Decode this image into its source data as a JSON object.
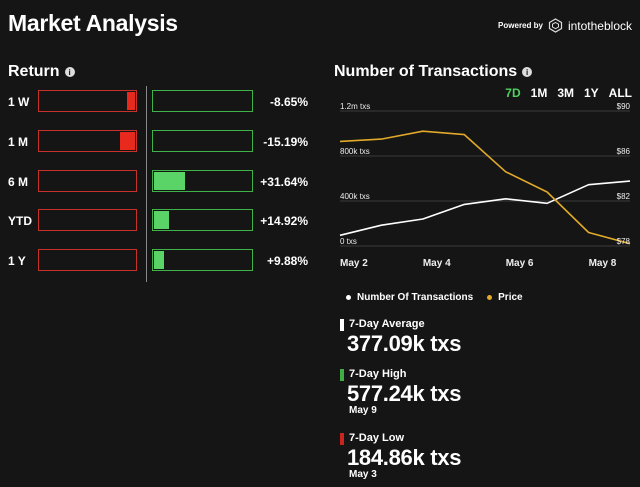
{
  "header": {
    "title": "Market Analysis",
    "powered_by": "Powered by",
    "brand": "intotheblock"
  },
  "return_section": {
    "title": "Return",
    "rows": [
      {
        "label": "1 W",
        "value": "-8.65%",
        "neg_pct": 8.65,
        "pos_pct": 0
      },
      {
        "label": "1 M",
        "value": "-15.19%",
        "neg_pct": 15.19,
        "pos_pct": 0
      },
      {
        "label": "6 M",
        "value": "+31.64%",
        "neg_pct": 0,
        "pos_pct": 31.64
      },
      {
        "label": "YTD",
        "value": "+14.92%",
        "neg_pct": 0,
        "pos_pct": 14.92
      },
      {
        "label": "1 Y",
        "value": "+9.88%",
        "neg_pct": 0,
        "pos_pct": 9.88
      }
    ],
    "colors": {
      "negative": "#e8291e",
      "positive": "#5bd467"
    }
  },
  "transactions": {
    "title": "Number of Transactions",
    "timeframes": [
      "7D",
      "1M",
      "3M",
      "1Y",
      "ALL"
    ],
    "active_timeframe": "7D",
    "legend": {
      "transactions": "Number Of Transactions",
      "price": "Price"
    }
  },
  "chart_data": {
    "type": "line",
    "x": [
      "May 2",
      "May 3",
      "May 4",
      "May 5",
      "May 6",
      "May 7",
      "May 8",
      "May 9"
    ],
    "x_tick_labels": [
      "May 2",
      "May 4",
      "May 6",
      "May 8"
    ],
    "y_left_ticks": [
      "1.2m txs",
      "800k txs",
      "400k txs",
      "0 txs"
    ],
    "y_right_ticks": [
      "$90",
      "$86",
      "$82",
      "$78"
    ],
    "y_left_range": [
      0,
      1200000
    ],
    "y_right_range": [
      78,
      90
    ],
    "series": [
      {
        "name": "Number Of Transactions",
        "axis": "left",
        "color": "#ffffff",
        "values": [
          95000,
          184860,
          240000,
          370000,
          420000,
          380000,
          545000,
          577240
        ]
      },
      {
        "name": "Price",
        "axis": "right",
        "color": "#e0a92a",
        "values": [
          87.3,
          87.5,
          88.2,
          87.9,
          84.6,
          82.8,
          79.2,
          78.2
        ]
      }
    ]
  },
  "stats": [
    {
      "label": "7-Day Average",
      "value": "377.09k txs",
      "date": "",
      "color": "#ffffff"
    },
    {
      "label": "7-Day High",
      "value": "577.24k txs",
      "date": "May 9",
      "color": "#3fae45"
    },
    {
      "label": "7-Day Low",
      "value": "184.86k txs",
      "date": "May 3",
      "color": "#c8261c"
    }
  ]
}
